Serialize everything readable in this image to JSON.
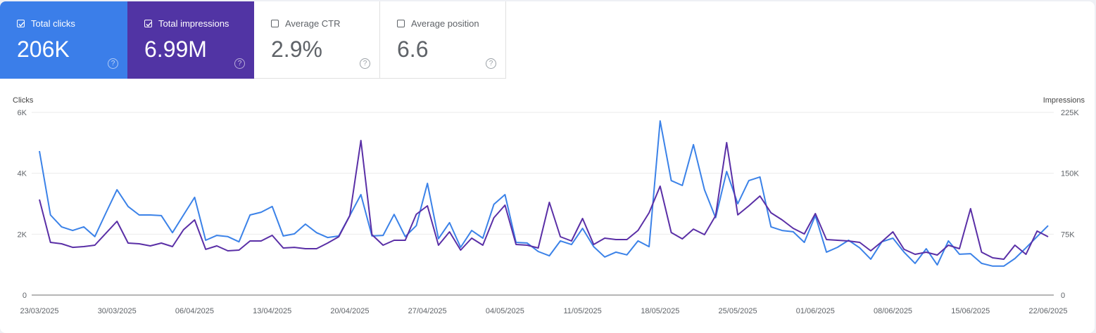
{
  "tiles": [
    {
      "label": "Total clicks",
      "value": "206K",
      "checked": true,
      "color": "#3b7ee9"
    },
    {
      "label": "Total impressions",
      "value": "6.99M",
      "checked": true,
      "color": "#5134a4"
    },
    {
      "label": "Average CTR",
      "value": "2.9%",
      "checked": false
    },
    {
      "label": "Average position",
      "value": "6.6",
      "checked": false
    }
  ],
  "help_glyph": "?",
  "chart_data": {
    "type": "line",
    "left_axis": {
      "label": "Clicks",
      "ticks": [
        "0",
        "2K",
        "4K",
        "6K"
      ],
      "range": [
        0,
        6000
      ]
    },
    "right_axis": {
      "label": "Impressions",
      "ticks": [
        "0",
        "75K",
        "150K",
        "225K"
      ],
      "range": [
        0,
        225000
      ]
    },
    "x_tick_labels": [
      "23/03/2025",
      "30/03/2025",
      "06/04/2025",
      "13/04/2025",
      "20/04/2025",
      "27/04/2025",
      "04/05/2025",
      "11/05/2025",
      "18/05/2025",
      "25/05/2025",
      "01/06/2025",
      "08/06/2025",
      "15/06/2025",
      "22/06/2025"
    ],
    "x": [
      "23/03/2025",
      "24/03/2025",
      "25/03/2025",
      "26/03/2025",
      "27/03/2025",
      "28/03/2025",
      "29/03/2025",
      "30/03/2025",
      "31/03/2025",
      "01/04/2025",
      "02/04/2025",
      "03/04/2025",
      "04/04/2025",
      "05/04/2025",
      "06/04/2025",
      "07/04/2025",
      "08/04/2025",
      "09/04/2025",
      "10/04/2025",
      "11/04/2025",
      "12/04/2025",
      "13/04/2025",
      "14/04/2025",
      "15/04/2025",
      "16/04/2025",
      "17/04/2025",
      "18/04/2025",
      "19/04/2025",
      "20/04/2025",
      "21/04/2025",
      "22/04/2025",
      "23/04/2025",
      "24/04/2025",
      "25/04/2025",
      "26/04/2025",
      "27/04/2025",
      "28/04/2025",
      "29/04/2025",
      "30/04/2025",
      "01/05/2025",
      "02/05/2025",
      "03/05/2025",
      "04/05/2025",
      "05/05/2025",
      "06/05/2025",
      "07/05/2025",
      "08/05/2025",
      "09/05/2025",
      "10/05/2025",
      "11/05/2025",
      "12/05/2025",
      "13/05/2025",
      "14/05/2025",
      "15/05/2025",
      "16/05/2025",
      "17/05/2025",
      "18/05/2025",
      "19/05/2025",
      "20/05/2025",
      "21/05/2025",
      "22/05/2025",
      "23/05/2025",
      "24/05/2025",
      "25/05/2025",
      "26/05/2025",
      "27/05/2025",
      "28/05/2025",
      "29/05/2025",
      "30/05/2025",
      "31/05/2025",
      "01/06/2025",
      "02/06/2025",
      "03/06/2025",
      "04/06/2025",
      "05/06/2025",
      "06/06/2025",
      "07/06/2025",
      "08/06/2025",
      "09/06/2025",
      "10/06/2025",
      "11/06/2025",
      "12/06/2025",
      "13/06/2025",
      "14/06/2025",
      "15/06/2025",
      "16/06/2025",
      "17/06/2025",
      "18/06/2025",
      "19/06/2025",
      "20/06/2025",
      "21/06/2025",
      "22/06/2025"
    ],
    "grid": true,
    "series": [
      {
        "name": "Clicks",
        "axis": "left",
        "color": "#3b82e8",
        "values": [
          4730,
          2630,
          2240,
          2120,
          2240,
          1920,
          2700,
          3460,
          2910,
          2630,
          2630,
          2610,
          2050,
          2630,
          3210,
          1800,
          1960,
          1920,
          1750,
          2630,
          2720,
          2910,
          1940,
          2010,
          2330,
          2050,
          1890,
          1940,
          2610,
          3300,
          1940,
          1960,
          2650,
          1920,
          2280,
          3670,
          1850,
          2380,
          1570,
          2120,
          1870,
          2980,
          3300,
          1730,
          1710,
          1430,
          1290,
          1780,
          1660,
          2190,
          1590,
          1250,
          1410,
          1320,
          1780,
          1590,
          5720,
          3760,
          3600,
          4940,
          3460,
          2540,
          4060,
          3000,
          3760,
          3880,
          2240,
          2120,
          2080,
          1730,
          2610,
          1410,
          1570,
          1800,
          1550,
          1180,
          1750,
          1870,
          1410,
          1040,
          1520,
          990,
          1780,
          1340,
          1360,
          1040,
          950,
          950,
          1200,
          1550,
          1920,
          2280
        ]
      },
      {
        "name": "Impressions",
        "axis": "right",
        "color": "#5a2fa6",
        "values": [
          117700,
          64900,
          63200,
          58800,
          59700,
          61400,
          76200,
          90900,
          64000,
          63200,
          60600,
          64000,
          59700,
          80500,
          92600,
          56300,
          60600,
          54500,
          55400,
          66600,
          66600,
          73600,
          58000,
          58800,
          57100,
          57100,
          64000,
          71800,
          97800,
          190400,
          74400,
          61400,
          67500,
          67500,
          99500,
          109900,
          61400,
          77900,
          55400,
          70100,
          61400,
          95200,
          110800,
          62300,
          61400,
          58000,
          114200,
          71800,
          66600,
          94300,
          62300,
          70100,
          68400,
          68400,
          79600,
          101300,
          134100,
          77000,
          69200,
          81300,
          74400,
          97800,
          187800,
          98700,
          109900,
          122000,
          101300,
          92600,
          82200,
          75300,
          100400,
          68400,
          67500,
          66600,
          64900,
          54500,
          65800,
          77900,
          56300,
          50200,
          52800,
          49300,
          61400,
          57100,
          106400,
          52800,
          45900,
          44100,
          61400,
          50200,
          78800,
          71800
        ]
      }
    ]
  }
}
